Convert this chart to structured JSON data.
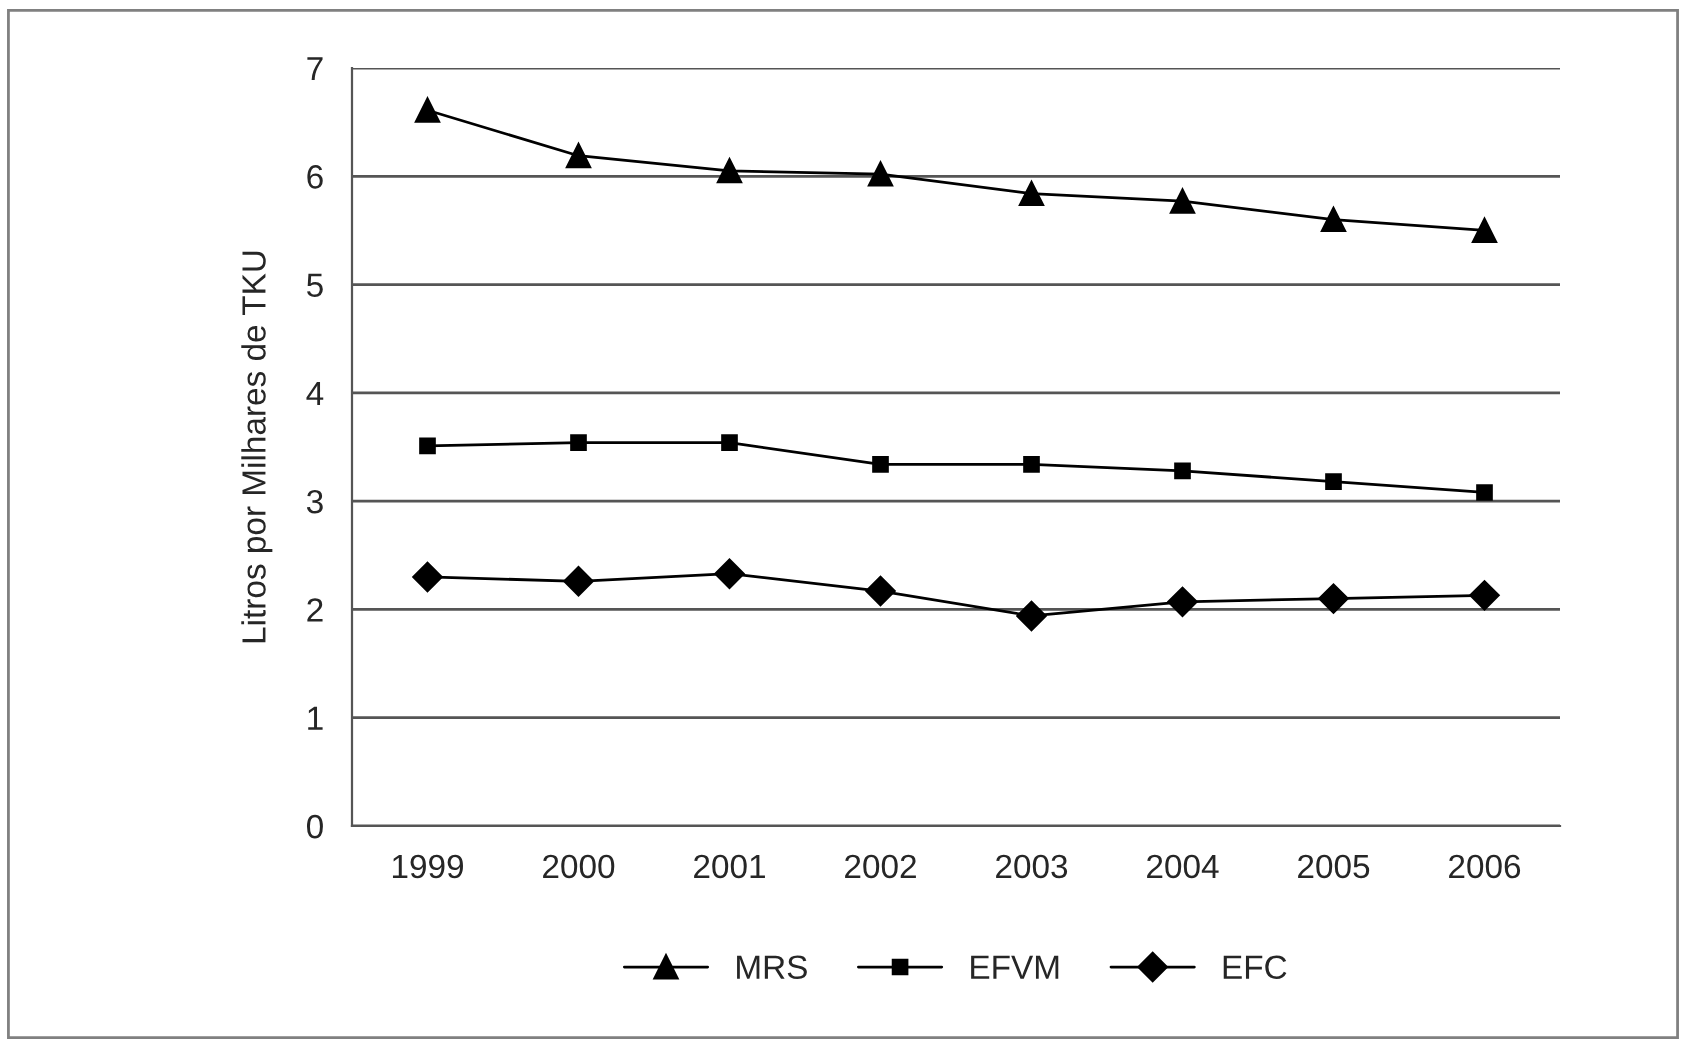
{
  "chart_data": {
    "type": "line",
    "ylabel": "Litros por Milhares de TKU",
    "categories": [
      "1999",
      "2000",
      "2001",
      "2002",
      "2003",
      "2004",
      "2005",
      "2006"
    ],
    "series": [
      {
        "name": "MRS",
        "color": "#000000",
        "marker": "triangle",
        "values": [
          6.61,
          6.19,
          6.05,
          6.02,
          5.84,
          5.77,
          5.6,
          5.5
        ]
      },
      {
        "name": "EFVM",
        "color": "#000000",
        "marker": "square",
        "values": [
          3.51,
          3.54,
          3.54,
          3.34,
          3.34,
          3.28,
          3.18,
          3.08
        ]
      },
      {
        "name": "EFC",
        "color": "#000000",
        "marker": "diamond",
        "values": [
          2.3,
          2.26,
          2.33,
          2.17,
          1.94,
          2.07,
          2.1,
          2.13
        ]
      }
    ],
    "ylim": [
      0,
      7
    ],
    "yticks": [
      0,
      1,
      2,
      3,
      4,
      5,
      6,
      7
    ],
    "grid": "y",
    "legend": "bottom",
    "line_style": "solid"
  }
}
